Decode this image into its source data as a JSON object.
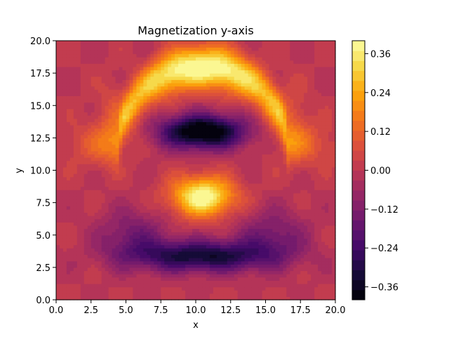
{
  "chart_data": {
    "type": "heatmap",
    "title": "Magnetization y-axis",
    "xlabel": "x",
    "ylabel": "y",
    "xlim": [
      0,
      20
    ],
    "ylim": [
      0,
      20
    ],
    "x_ticks": [
      "0.0",
      "2.5",
      "5.0",
      "7.5",
      "10.0",
      "12.5",
      "15.0",
      "17.5",
      "20.0"
    ],
    "y_ticks": [
      "0.0",
      "2.5",
      "5.0",
      "7.5",
      "10.0",
      "12.5",
      "15.0",
      "17.5",
      "20.0"
    ],
    "colormap": "inferno",
    "colorbar": {
      "range": [
        -0.4,
        0.4
      ],
      "ticks": [
        "0.36",
        "0.24",
        "0.12",
        "0.00",
        "−0.12",
        "−0.24",
        "−0.36"
      ],
      "tick_values": [
        0.36,
        0.24,
        0.12,
        0.0,
        -0.12,
        -0.24,
        -0.36
      ],
      "levels": 26
    },
    "features": [
      {
        "kind": "maximum",
        "x": 10.5,
        "y": 18.0,
        "value": 0.38
      },
      {
        "kind": "minimum",
        "x": 10.5,
        "y": 13.0,
        "value": -0.38
      },
      {
        "kind": "maximum",
        "x": 10.5,
        "y": 8.0,
        "value": 0.36
      },
      {
        "kind": "minimum",
        "x": 10.5,
        "y": 3.2,
        "value": -0.4
      }
    ]
  }
}
